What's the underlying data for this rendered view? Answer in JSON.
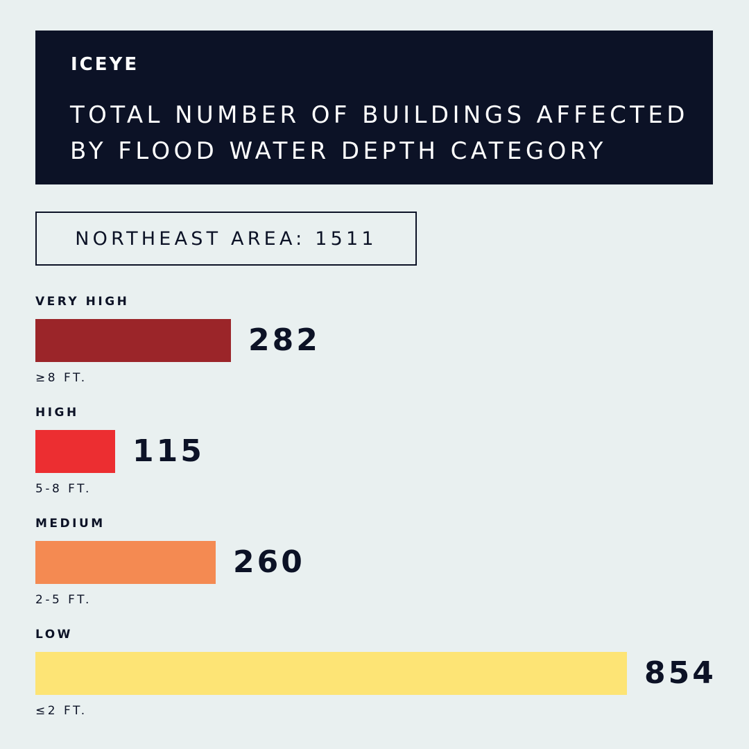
{
  "logo": "ICEYE",
  "title_line1": "TOTAL NUMBER OF BUILDINGS AFFECTED",
  "title_line2": "BY FLOOD WATER DEPTH CATEGORY",
  "area_label": "NORTHEAST AREA: 1511",
  "chart_data": {
    "type": "bar",
    "orientation": "horizontal",
    "categories": [
      "VERY HIGH",
      "HIGH",
      "MEDIUM",
      "LOW"
    ],
    "ranges": [
      "≥8 FT.",
      "5-8 FT.",
      "2-5 FT.",
      "≤2 FT."
    ],
    "values": [
      282,
      115,
      260,
      854
    ],
    "colors": [
      "#9b2529",
      "#ec2e31",
      "#f48a52",
      "#fde475"
    ],
    "value_max": 854,
    "grid": false,
    "legend": "none"
  }
}
